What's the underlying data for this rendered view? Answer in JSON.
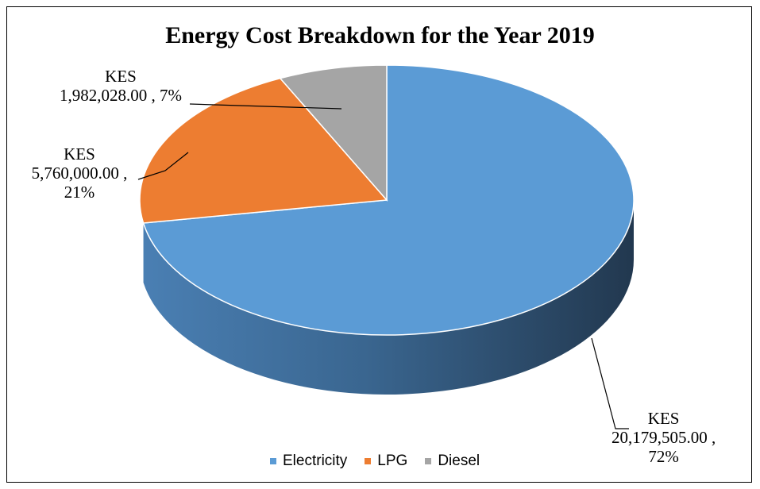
{
  "chart_data": {
    "type": "pie",
    "title": "Energy Cost Breakdown for the Year 2019",
    "categories": [
      "Electricity",
      "LPG",
      "Diesel"
    ],
    "values": [
      20179505.0,
      5760000.0,
      1982028.0
    ],
    "percents": [
      72,
      21,
      7
    ],
    "colors": [
      "#5b9bd5",
      "#ed7d31",
      "#a5a5a5"
    ],
    "legend_position": "bottom",
    "data_labels": [
      {
        "line1": "KES",
        "line2": "20,179,505.00 ,",
        "line3": "72%"
      },
      {
        "line1": "KES",
        "line2": "5,760,000.00 ,",
        "line3": "21%"
      },
      {
        "line1": "KES",
        "line2": "1,982,028.00 , 7%"
      }
    ]
  }
}
